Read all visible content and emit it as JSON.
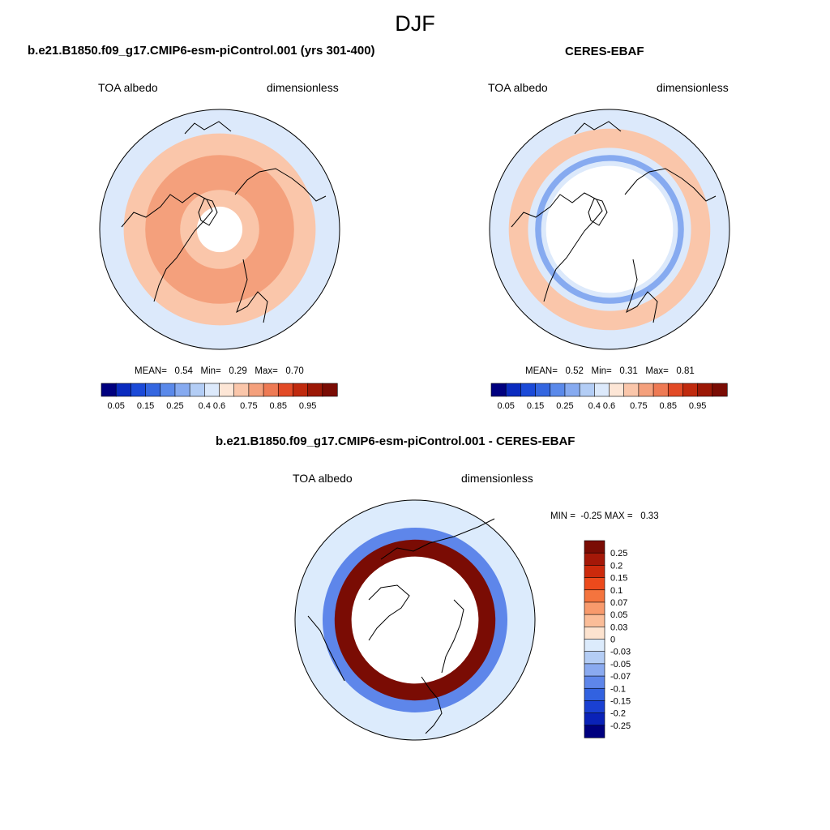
{
  "figure": {
    "title": "DJF"
  },
  "panels": [
    {
      "title": "b.e21.B1850.f09_g17.CMIP6-esm-piControl.001 (yrs 301-400)",
      "left_label": "TOA albedo",
      "right_label": "dimensionless",
      "stats": {
        "mean_label": "MEAN=",
        "mean": "0.54",
        "min_label": "Min=",
        "min": "0.29",
        "max_label": "Max=",
        "max": "0.70"
      }
    },
    {
      "title": "CERES-EBAF",
      "left_label": "TOA albedo",
      "right_label": "dimensionless",
      "stats": {
        "mean_label": "MEAN=",
        "mean": "0.52",
        "min_label": "Min=",
        "min": "0.31",
        "max_label": "Max=",
        "max": "0.81"
      }
    },
    {
      "title": "b.e21.B1850.f09_g17.CMIP6-esm-piControl.001 - CERES-EBAF",
      "left_label": "TOA albedo",
      "right_label": "dimensionless",
      "stats": {
        "text": "MIN =  -0.25 MAX =   0.33"
      }
    }
  ],
  "chart_data": [
    {
      "type": "heatmap",
      "projection": "north-polar-stereographic",
      "title": "b.e21.B1850.f09_g17.CMIP6-esm-piControl.001 (yrs 301-400)",
      "variable": "TOA albedo",
      "units": "dimensionless",
      "mean": 0.54,
      "min": 0.29,
      "max": 0.7,
      "colorbar": {
        "orientation": "horizontal",
        "tick_labels": [
          "0.05",
          "0.15",
          "0.25",
          "0.4",
          "0.6",
          "0.75",
          "0.85",
          "0.95"
        ],
        "colors": [
          "#00007f",
          "#0a2bbf",
          "#1b4ad8",
          "#3466e0",
          "#5a89ea",
          "#86aaf0",
          "#b3cdf5",
          "#dce9fb",
          "#fde6d6",
          "#fac6aa",
          "#f4a07c",
          "#ee7a54",
          "#e24a26",
          "#c02a0e",
          "#9c1806",
          "#7a0c04"
        ]
      },
      "rings": [
        {
          "r_inner": 0.0,
          "r_outer": 0.19,
          "value": "missing"
        },
        {
          "r_inner": 0.19,
          "r_outer": 0.33,
          "value": 0.6
        },
        {
          "r_inner": 0.33,
          "r_outer": 0.62,
          "value": 0.7
        },
        {
          "r_inner": 0.62,
          "r_outer": 0.8,
          "value": 0.6
        },
        {
          "r_inner": 0.8,
          "r_outer": 1.0,
          "value": 0.4
        }
      ]
    },
    {
      "type": "heatmap",
      "projection": "north-polar-stereographic",
      "title": "CERES-EBAF",
      "variable": "TOA albedo",
      "units": "dimensionless",
      "mean": 0.52,
      "min": 0.31,
      "max": 0.81,
      "colorbar": {
        "orientation": "horizontal",
        "tick_labels": [
          "0.05",
          "0.15",
          "0.25",
          "0.4",
          "0.6",
          "0.75",
          "0.85",
          "0.95"
        ],
        "colors": [
          "#00007f",
          "#0a2bbf",
          "#1b4ad8",
          "#3466e0",
          "#5a89ea",
          "#86aaf0",
          "#b3cdf5",
          "#dce9fb",
          "#fde6d6",
          "#fac6aa",
          "#f4a07c",
          "#ee7a54",
          "#e24a26",
          "#c02a0e",
          "#9c1806",
          "#7a0c04"
        ]
      },
      "rings": [
        {
          "r_inner": 0.0,
          "r_outer": 0.53,
          "value": "missing"
        },
        {
          "r_inner": 0.53,
          "r_outer": 0.57,
          "value": 0.4
        },
        {
          "r_inner": 0.57,
          "r_outer": 0.62,
          "value": 0.25
        },
        {
          "r_inner": 0.62,
          "r_outer": 0.68,
          "value": 0.4
        },
        {
          "r_inner": 0.68,
          "r_outer": 0.84,
          "value": 0.6
        },
        {
          "r_inner": 0.84,
          "r_outer": 1.0,
          "value": 0.4
        }
      ]
    },
    {
      "type": "heatmap",
      "projection": "north-polar-stereographic",
      "title": "b.e21.B1850.f09_g17.CMIP6-esm-piControl.001 - CERES-EBAF",
      "variable": "TOA albedo",
      "units": "dimensionless",
      "min": -0.25,
      "max": 0.33,
      "colorbar": {
        "orientation": "vertical",
        "tick_labels": [
          "0.25",
          "0.2",
          "0.15",
          "0.1",
          "0.07",
          "0.05",
          "0.03",
          "0",
          "-0.03",
          "-0.05",
          "-0.07",
          "-0.1",
          "-0.15",
          "-0.2",
          "-0.25"
        ],
        "colors": [
          "#7a0c04",
          "#a51808",
          "#cc2a0c",
          "#ec4a1c",
          "#f4743e",
          "#f89a6c",
          "#fbbd98",
          "#fde3cf",
          "#dcebfc",
          "#b4cdf5",
          "#8aaaf0",
          "#5e86ea",
          "#3262e0",
          "#1a40d2",
          "#0a22b8",
          "#00007f"
        ]
      },
      "rings": [
        {
          "r_inner": 0.0,
          "r_outer": 0.53,
          "value": "missing"
        },
        {
          "r_inner": 0.53,
          "r_outer": 0.67,
          "value": 0.25
        },
        {
          "r_inner": 0.67,
          "r_outer": 0.77,
          "value": -0.1
        },
        {
          "r_inner": 0.77,
          "r_outer": 1.0,
          "value": -0.03
        }
      ]
    }
  ]
}
